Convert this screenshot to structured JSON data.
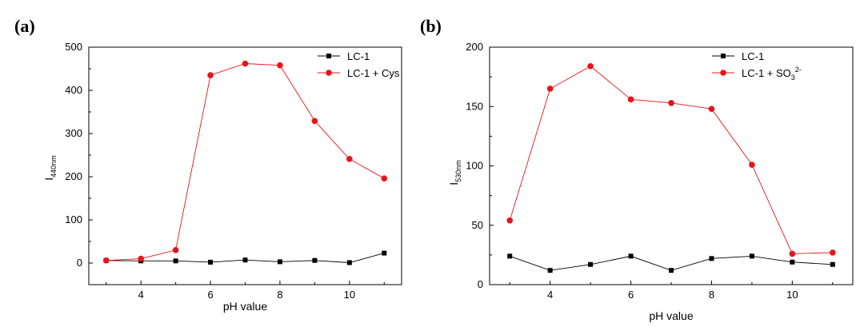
{
  "chart_data": [
    {
      "type": "line",
      "panel_label": "(a)",
      "xlabel": "pH value",
      "ylabel": {
        "main": "I",
        "sub": "440nm"
      },
      "xlim": [
        2.5,
        11.5
      ],
      "ylim": [
        -50,
        500
      ],
      "xticks": [
        4,
        6,
        8,
        10
      ],
      "yticks": [
        0,
        100,
        200,
        300,
        400,
        500
      ],
      "grid": false,
      "legend_position": "top-right",
      "x": [
        3,
        4,
        5,
        6,
        7,
        8,
        9,
        10,
        11
      ],
      "series": [
        {
          "name": "LC-1",
          "name_sup": "",
          "color": "#000000",
          "marker": "square",
          "values": [
            6,
            5,
            5,
            2,
            7,
            3,
            6,
            1,
            23
          ]
        },
        {
          "name": "LC-1 + Cys",
          "name_sup": "",
          "color": "#e8141a",
          "marker": "circle",
          "values": [
            6,
            10,
            30,
            435,
            462,
            458,
            329,
            241,
            196
          ]
        }
      ]
    },
    {
      "type": "line",
      "panel_label": "(b)",
      "xlabel": "pH value",
      "ylabel": {
        "main": "I",
        "sub": "530nm"
      },
      "xlim": [
        2.5,
        11.5
      ],
      "ylim": [
        0,
        200
      ],
      "xticks": [
        4,
        6,
        8,
        10
      ],
      "yticks": [
        0,
        50,
        100,
        150,
        200
      ],
      "grid": false,
      "legend_position": "top-right",
      "x": [
        3,
        4,
        5,
        6,
        7,
        8,
        9,
        10,
        11
      ],
      "series": [
        {
          "name": "LC-1",
          "name_sub": "",
          "name_sup": "",
          "color": "#000000",
          "marker": "square",
          "values": [
            24,
            12,
            17,
            24,
            12,
            22,
            24,
            19,
            17
          ]
        },
        {
          "name": "LC-1 + SO",
          "name_sub": "3",
          "name_sup": "2-",
          "color": "#e8141a",
          "marker": "circle",
          "values": [
            54,
            165,
            184,
            156,
            153,
            148,
            101,
            26,
            27
          ]
        }
      ]
    }
  ]
}
